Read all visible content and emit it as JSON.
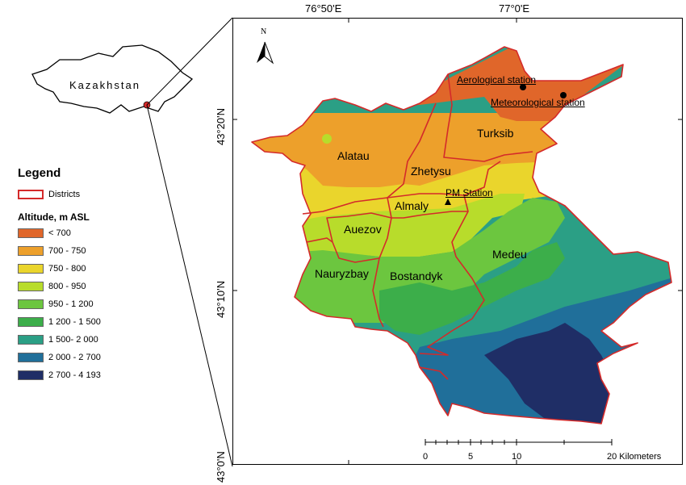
{
  "inset": {
    "country_label": "Kazakhstan"
  },
  "coordinates": {
    "lon_ticks": [
      "76°50'E",
      "77°0'E"
    ],
    "lat_ticks": [
      "43°20'N",
      "43°10'N",
      "43°0'N"
    ]
  },
  "north_arrow": {
    "label": "N"
  },
  "legend": {
    "title": "Legend",
    "districts_label": "Districts",
    "altitude_title": "Altitude, m ASL",
    "classes": [
      {
        "label": "< 700",
        "color": "#e0662a"
      },
      {
        "label": "700 - 750",
        "color": "#eda02b"
      },
      {
        "label": "750 - 800",
        "color": "#ead52c"
      },
      {
        "label": "800 - 950",
        "color": "#b8dc2b"
      },
      {
        "label": "950 - 1 200",
        "color": "#6cc63f"
      },
      {
        "label": "1 200 - 1 500",
        "color": "#3cae4a"
      },
      {
        "label": "1 500- 2 000",
        "color": "#2b9f85"
      },
      {
        "label": "2 000 - 2 700",
        "color": "#206f9a"
      },
      {
        "label": "2 700 - 4 193",
        "color": "#1f2e66"
      }
    ],
    "district_color": "#d42a2a"
  },
  "districts": [
    "Alatau",
    "Zhetysu",
    "Turksib",
    "Almaly",
    "Auezov",
    "Medeu",
    "Nauryzbay",
    "Bostandyk"
  ],
  "stations": {
    "aerological": "Aerological station",
    "meteorological": "Meteorological station",
    "pm": "PM Station"
  },
  "scale_bar": {
    "ticks": [
      "0",
      "5",
      "10",
      "20 Kilometers"
    ]
  }
}
